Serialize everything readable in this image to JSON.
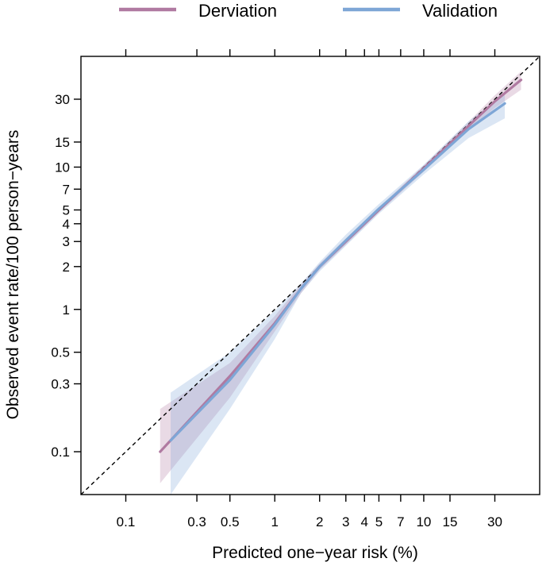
{
  "chart_data": {
    "type": "line",
    "title": "",
    "xlabel": "Predicted one−year risk (%)",
    "ylabel": "Observed event rate/100 person−years",
    "x_scale": "log",
    "y_scale": "log",
    "xlim": [
      0.05,
      60
    ],
    "ylim": [
      0.05,
      60
    ],
    "x_ticks": [
      0.1,
      0.3,
      0.5,
      1,
      2,
      3,
      4,
      5,
      7,
      10,
      15,
      30
    ],
    "x_tick_labels": [
      "0.1",
      "0.3",
      "0.5",
      "1",
      "2",
      "3",
      "4",
      "5",
      "7",
      "10",
      "15",
      "30"
    ],
    "y_ticks": [
      0.1,
      0.3,
      0.5,
      1,
      2,
      3,
      4,
      5,
      7,
      10,
      15,
      30
    ],
    "y_tick_labels": [
      "0.1",
      "0.3",
      "0.5",
      "1",
      "2",
      "3",
      "4",
      "5",
      "7",
      "10",
      "15",
      "30"
    ],
    "grid": false,
    "legend_position": "top",
    "reference_line": "identity",
    "colors": {
      "derivation": "#b07aa1",
      "validation": "#7ea6d6",
      "reference": "#000000"
    },
    "series": [
      {
        "name": "Derviation",
        "x": [
          0.17,
          0.5,
          1.0,
          1.5,
          2.0,
          3.0,
          5.0,
          10.0,
          20.0,
          30.0,
          45.0
        ],
        "y": [
          0.1,
          0.34,
          0.8,
          1.4,
          2.0,
          3.0,
          5.0,
          9.8,
          19.5,
          29.0,
          41.0
        ],
        "lower": [
          0.06,
          0.24,
          0.7,
          1.3,
          1.9,
          2.85,
          4.8,
          9.3,
          18.2,
          26.0,
          35.0
        ],
        "upper": [
          0.2,
          0.42,
          0.9,
          1.5,
          2.1,
          3.15,
          5.2,
          10.3,
          20.8,
          32.0,
          47.0
        ]
      },
      {
        "name": "Validation",
        "x": [
          0.2,
          0.5,
          1.0,
          1.5,
          2.0,
          3.0,
          5.0,
          10.0,
          20.0,
          35.0
        ],
        "y": [
          0.12,
          0.32,
          0.78,
          1.4,
          2.0,
          3.05,
          5.1,
          9.6,
          18.5,
          28.0
        ],
        "lower": [
          0.05,
          0.2,
          0.62,
          1.3,
          1.85,
          2.8,
          4.7,
          8.9,
          16.0,
          22.0
        ],
        "upper": [
          0.26,
          0.5,
          0.98,
          1.52,
          2.15,
          3.35,
          5.5,
          10.4,
          21.0,
          33.0
        ]
      }
    ]
  }
}
